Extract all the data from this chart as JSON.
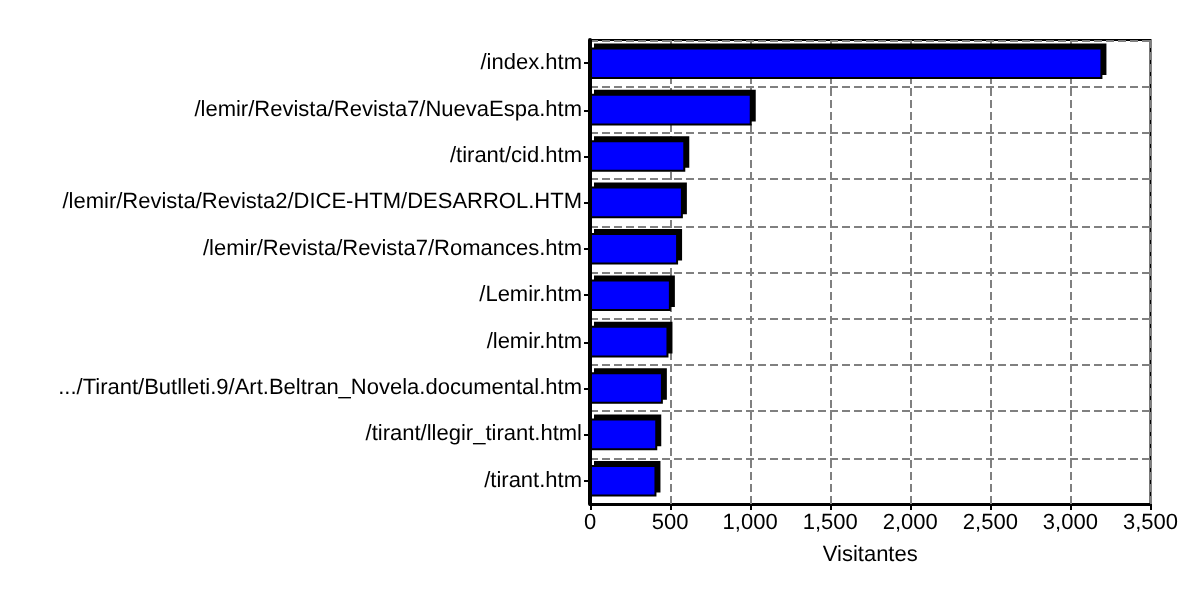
{
  "chart_data": {
    "type": "bar",
    "orientation": "horizontal",
    "xlabel": "Visitantes",
    "categories": [
      "/index.htm",
      "/lemir/Revista/Revista7/NuevaEspa.htm",
      "/tirant/cid.htm",
      "/lemir/Revista/Revista2/DICE-HTM/DESARROL.HTM",
      "/lemir/Revista/Revista7/Romances.htm",
      "/Lemir.htm",
      "/lemir.htm",
      ".../Tirant/Butlleti.9/Art.Beltran_Novela.documental.htm",
      "/tirant/llegir_tirant.html",
      "/tirant.htm"
    ],
    "values": [
      3200,
      1010,
      595,
      580,
      550,
      505,
      490,
      455,
      420,
      415
    ],
    "color": "#0000ff",
    "xlim": [
      0,
      3500
    ],
    "xticks": [
      0,
      500,
      {
        "value": 1000,
        "label": "1,000"
      },
      {
        "value": 1500,
        "label": "1,500"
      },
      {
        "value": 2000,
        "label": "2,000"
      },
      {
        "value": 2500,
        "label": "2,500"
      },
      {
        "value": 3000,
        "label": "3,000"
      },
      {
        "value": 3500,
        "label": "3,500"
      }
    ],
    "grid": true
  }
}
